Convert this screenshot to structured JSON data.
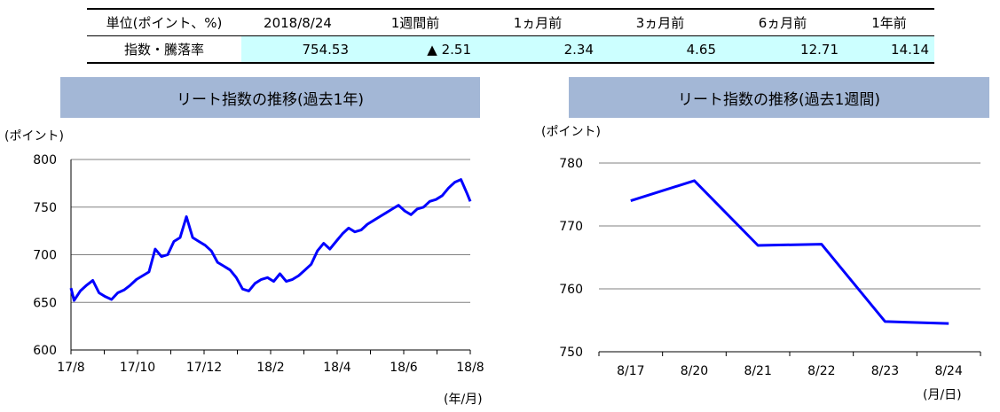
{
  "summary": {
    "header": [
      "単位(ポイント、%)",
      "2018/8/24",
      "1週間前",
      "1ヵ月前",
      "3ヵ月前",
      "6ヵ月前",
      "1年前"
    ],
    "row_label": "指数・騰落率",
    "values": [
      "754.53",
      "▲ 2.51",
      "2.34",
      "4.65",
      "12.71",
      "14.14"
    ]
  },
  "charts": {
    "left_title": "リート指数の推移(過去1年)",
    "right_title": "リート指数の推移(過去1週間)"
  },
  "chart_data": [
    {
      "type": "line",
      "title": "リート指数の推移(過去1年)",
      "ylabel": "(ポイント)",
      "xlabel": "(年/月)",
      "ylim": [
        600,
        800
      ],
      "yticks": [
        "600",
        "650",
        "700",
        "750",
        "800"
      ],
      "xticks": [
        "17/8",
        "17/10",
        "17/12",
        "18/2",
        "18/4",
        "18/6",
        "18/8"
      ],
      "xlim": [
        0,
        12.8
      ],
      "grid": true,
      "color": "#0000ff",
      "series": [
        {
          "x": [
            0,
            0.1,
            0.3,
            0.5,
            0.7,
            0.9,
            1.1,
            1.3,
            1.5,
            1.7,
            1.9,
            2.1,
            2.3,
            2.5,
            2.7,
            2.9,
            3.1,
            3.3,
            3.5,
            3.7,
            3.9,
            4.1,
            4.3,
            4.5,
            4.7,
            4.9,
            5.1,
            5.3,
            5.5,
            5.7,
            5.9,
            6.1,
            6.3,
            6.5,
            6.7,
            6.9,
            7.1,
            7.3,
            7.5,
            7.7,
            7.9,
            8.1,
            8.3,
            8.5,
            8.7,
            8.9,
            9.1,
            9.3,
            9.5,
            9.7,
            9.9,
            10.1,
            10.3,
            10.5,
            10.7,
            10.9,
            11.1,
            11.3,
            11.5,
            11.7,
            11.9,
            12.1,
            12.3,
            12.5,
            12.7,
            12.8
          ],
          "y": [
            665,
            652,
            662,
            668,
            673,
            660,
            656,
            653,
            660,
            663,
            668,
            674,
            678,
            682,
            706,
            698,
            700,
            714,
            718,
            740,
            718,
            714,
            710,
            704,
            692,
            688,
            684,
            676,
            664,
            662,
            670,
            674,
            676,
            672,
            680,
            672,
            674,
            678,
            684,
            690,
            704,
            712,
            706,
            714,
            722,
            728,
            724,
            726,
            732,
            736,
            740,
            744,
            748,
            752,
            746,
            742,
            748,
            750,
            756,
            758,
            762,
            770,
            776,
            779,
            764,
            756
          ]
        }
      ]
    },
    {
      "type": "line",
      "title": "リート指数の推移(過去1週間)",
      "ylabel": "(ポイント)",
      "xlabel": "(月/日)",
      "ylim": [
        750,
        780
      ],
      "yticks": [
        "750",
        "760",
        "770",
        "780"
      ],
      "categories": [
        "8/17",
        "8/20",
        "8/21",
        "8/22",
        "8/23",
        "8/24"
      ],
      "grid": true,
      "color": "#0000ff",
      "series": [
        {
          "values": [
            774.0,
            777.2,
            766.9,
            767.1,
            754.8,
            754.5
          ]
        }
      ]
    }
  ]
}
